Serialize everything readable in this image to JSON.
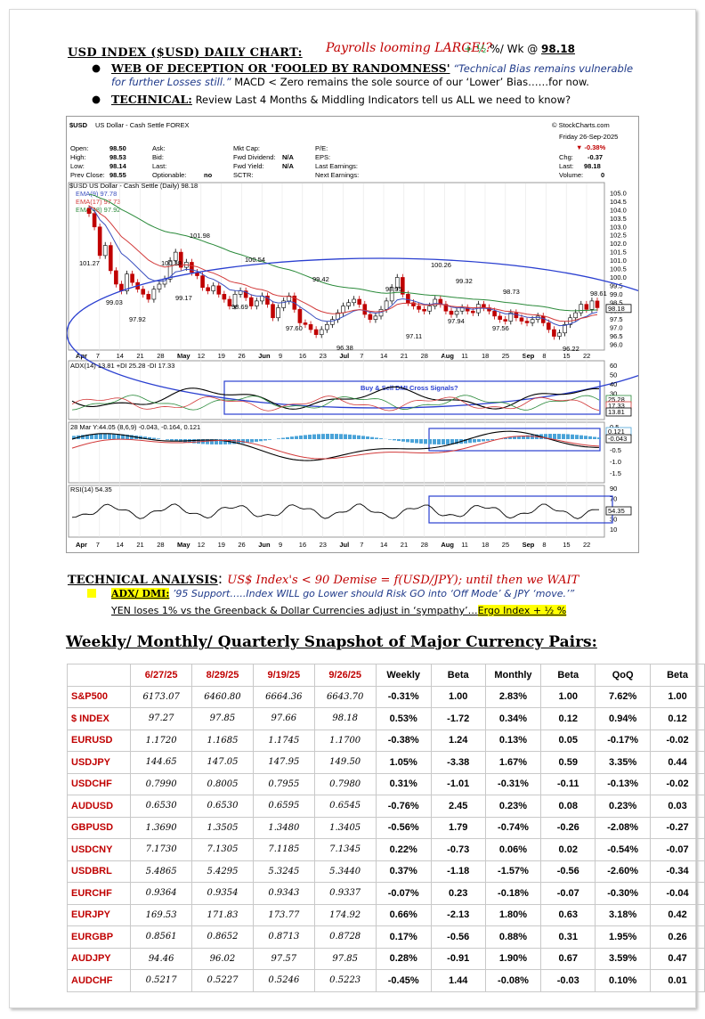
{
  "header": {
    "title": "USD INDEX ($USD) DAILY CHART:",
    "slogan": "Payrolls looming LARGE!?",
    "weekly_move": "+ ½",
    "weekly_suffix": " %/ Wk @ ",
    "level": "98.18",
    "bullet1_label": "WEB OF DECEPTION OR 'FOOLED BY RANDOMNESS'",
    "bullet1_quote": "“Technical Bias remains vulnerable",
    "bullet1_line2_quote": "for  further Losses still.”",
    "bullet1_line2_rest": "   MACD < Zero remains the sole source of our ‘Lower’ Bias……for now.",
    "bullet2_label": "TECHNICAL:",
    "bullet2_text": " Review Last 4 Months & Middling Indicators tell us ALL we need to know?"
  },
  "chart_header": {
    "symbol": "$USD",
    "name": "US Dollar - Cash Settle FOREX",
    "source": "© StockCharts.com",
    "date": "Friday 26-Sep-2025",
    "change_pct": "▼ -0.38%",
    "open_label": "Open:",
    "open": "98.50",
    "high_label": "High:",
    "high": "98.53",
    "low_label": "Low:",
    "low": "98.14",
    "prev_label": "Prev Close:",
    "prev": "98.55",
    "ask": "Ask:",
    "bid": "Bid:",
    "last": "Last:",
    "optionable": "Optionable:",
    "optionable_val": "no",
    "mktcap": "Mkt Cap:",
    "fwd_div": "Fwd Dividend:",
    "fwd_div_val": "N/A",
    "fwd_yld": "Fwd Yield:",
    "fwd_yld_val": "N/A",
    "sctr": "SCTR:",
    "pe": "P/E:",
    "eps": "EPS:",
    "last_earn": "Last Earnings:",
    "next_earn": "Next Earnings:",
    "chg_label": "Chg:",
    "chg": "-0.37",
    "last_label": "Last:",
    "last_val": "98.18",
    "vol_label": "Volume:",
    "vol": "0"
  },
  "chart_data": {
    "type": "line",
    "title": "$USD US Dollar - Cash Settle (Daily) 98.18",
    "legend": [
      {
        "name": "EMA(9) 97.78",
        "color": "#3a4fbf"
      },
      {
        "name": "EMA(17) 97.73",
        "color": "#d23a3a"
      },
      {
        "name": "EMA(48) 97.92",
        "color": "#2a8a3a"
      }
    ],
    "price_axis": [
      "105.0",
      "104.5",
      "104.0",
      "103.5",
      "103.0",
      "102.5",
      "102.0",
      "101.5",
      "101.0",
      "100.5",
      "100.0",
      "99.5",
      "99.0",
      "98.5",
      "98.0",
      "97.5",
      "97.0",
      "96.5",
      "96.0"
    ],
    "ylim": [
      96.0,
      105.0
    ],
    "x_labels": [
      "Apr",
      "7",
      "14",
      "21",
      "28",
      "May",
      "12",
      "19",
      "26",
      "Jun",
      "9",
      "16",
      "23",
      "Jul",
      "7",
      "14",
      "21",
      "28",
      "Aug",
      "11",
      "18",
      "25",
      "Sep",
      "8",
      "15",
      "22"
    ],
    "annotations": [
      "101.27",
      "99.03",
      "97.92",
      "100.38",
      "99.17",
      "101.98",
      "98.69",
      "100.54",
      "97.60",
      "99.42",
      "96.38",
      "98.95",
      "97.11",
      "100.26",
      "97.94",
      "99.32",
      "98.73",
      "97.56",
      "98.61",
      "96.22"
    ],
    "closes": [
      103.8,
      103.0,
      101.3,
      101.9,
      100.4,
      99.6,
      99.2,
      100.2,
      99.7,
      99.3,
      99.0,
      98.7,
      99.3,
      99.6,
      99.9,
      101.0,
      101.5,
      100.6,
      100.9,
      100.3,
      100.1,
      99.4,
      99.2,
      99.5,
      99.0,
      98.7,
      98.3,
      99.0,
      99.2,
      98.8,
      98.3,
      98.6,
      98.9,
      98.4,
      97.6,
      98.2,
      98.6,
      98.9,
      98.1,
      97.3,
      97.2,
      96.9,
      96.6,
      96.9,
      97.2,
      97.5,
      97.9,
      98.3,
      98.5,
      98.7,
      98.4,
      97.8,
      97.5,
      97.7,
      98.1,
      98.6,
      99.4,
      100.0,
      99.0,
      98.5,
      98.3,
      98.1,
      98.0,
      98.3,
      98.7,
      98.4,
      98.0,
      97.8,
      98.0,
      98.2,
      98.0,
      97.9,
      98.4,
      98.2,
      98.0,
      97.7,
      97.5,
      97.4,
      97.9,
      97.6,
      97.4,
      97.3,
      97.5,
      97.7,
      97.3,
      96.9,
      96.5,
      96.7,
      97.2,
      97.6,
      97.9,
      98.4,
      98.1,
      98.6,
      98.2
    ],
    "adx_label": "ADX(14) 13.81 +DI 25.28 -DI 17.33",
    "adx_axis": [
      "60",
      "50",
      "40",
      "30",
      "20",
      "10"
    ],
    "adx_tags": [
      "25.28",
      "17.33",
      "13.81"
    ],
    "dmi_note": "Buy & Sell DMI Cross Signals?",
    "macd_label": "28 Mar Y:44.05 (8,6,9) -0.043, -0.164, 0.121",
    "macd_axis": [
      "0.5",
      "0.0",
      "-0.5",
      "-1.0",
      "-1.5"
    ],
    "macd_tags": [
      "0.121",
      "-0.043"
    ],
    "rsi_label": "RSI(14) 54.35",
    "rsi_axis": [
      "90",
      "70",
      "50",
      "30",
      "10"
    ],
    "rsi_tag": "54.35",
    "bottom_labels": [
      "Apr",
      "7",
      "14",
      "21",
      "28",
      "May",
      "12",
      "19",
      "26",
      "Jun",
      "9",
      "16",
      "23",
      "Jul",
      "7",
      "14",
      "21",
      "28",
      "Aug",
      "11",
      "18",
      "25",
      "Sep",
      "8",
      "15",
      "22"
    ]
  },
  "technical": {
    "heading": "TECHNICAL ANALYSIS",
    "colon": ":",
    "red": "US$ Index's < 90 Demise = f(USD/JPY); until then we WAIT",
    "adx_label": "ADX/ DMI:",
    "adx_quote": " ’95 Support…..Index WILL go Lower should Risk GO into ‘Off Mode’ & JPY ‘move.’”",
    "line3": "YEN loses 1% vs the Greenback & Dollar Currencies adjust in ‘sympathy’…",
    "line3_hl": "Ergo Index + ½ %"
  },
  "snapshot": {
    "title": "Weekly/ Monthly/ Quarterly Snapshot of Major Currency Pairs:",
    "headers": [
      "",
      "6/27/25",
      "8/29/25",
      "9/19/25",
      "9/26/25",
      "Weekly",
      "Beta",
      "Monthly",
      "Beta",
      "QoQ",
      "Beta"
    ],
    "rows": [
      [
        "S&P500",
        "6173.07",
        "6460.80",
        "6664.36",
        "6643.70",
        "-0.31%",
        "1.00",
        "2.83%",
        "1.00",
        "7.62%",
        "1.00"
      ],
      [
        "$ INDEX",
        "97.27",
        "97.85",
        "97.66",
        "98.18",
        "0.53%",
        "-1.72",
        "0.34%",
        "0.12",
        "0.94%",
        "0.12"
      ],
      [
        "EURUSD",
        "1.1720",
        "1.1685",
        "1.1745",
        "1.1700",
        "-0.38%",
        "1.24",
        "0.13%",
        "0.05",
        "-0.17%",
        "-0.02"
      ],
      [
        "USDJPY",
        "144.65",
        "147.05",
        "147.95",
        "149.50",
        "1.05%",
        "-3.38",
        "1.67%",
        "0.59",
        "3.35%",
        "0.44"
      ],
      [
        "USDCHF",
        "0.7990",
        "0.8005",
        "0.7955",
        "0.7980",
        "0.31%",
        "-1.01",
        "-0.31%",
        "-0.11",
        "-0.13%",
        "-0.02"
      ],
      [
        "AUDUSD",
        "0.6530",
        "0.6530",
        "0.6595",
        "0.6545",
        "-0.76%",
        "2.45",
        "0.23%",
        "0.08",
        "0.23%",
        "0.03"
      ],
      [
        "GBPUSD",
        "1.3690",
        "1.3505",
        "1.3480",
        "1.3405",
        "-0.56%",
        "1.79",
        "-0.74%",
        "-0.26",
        "-2.08%",
        "-0.27"
      ],
      [
        "USDCNY",
        "7.1730",
        "7.1305",
        "7.1185",
        "7.1345",
        "0.22%",
        "-0.73",
        "0.06%",
        "0.02",
        "-0.54%",
        "-0.07"
      ],
      [
        "USDBRL",
        "5.4865",
        "5.4295",
        "5.3245",
        "5.3440",
        "0.37%",
        "-1.18",
        "-1.57%",
        "-0.56",
        "-2.60%",
        "-0.34"
      ],
      [
        "EURCHF",
        "0.9364",
        "0.9354",
        "0.9343",
        "0.9337",
        "-0.07%",
        "0.23",
        "-0.18%",
        "-0.07",
        "-0.30%",
        "-0.04"
      ],
      [
        "EURJPY",
        "169.53",
        "171.83",
        "173.77",
        "174.92",
        "0.66%",
        "-2.13",
        "1.80%",
        "0.63",
        "3.18%",
        "0.42"
      ],
      [
        "EURGBP",
        "0.8561",
        "0.8652",
        "0.8713",
        "0.8728",
        "0.17%",
        "-0.56",
        "0.88%",
        "0.31",
        "1.95%",
        "0.26"
      ],
      [
        "AUDJPY",
        "94.46",
        "96.02",
        "97.57",
        "97.85",
        "0.28%",
        "-0.91",
        "1.90%",
        "0.67",
        "3.59%",
        "0.47"
      ],
      [
        "AUDCHF",
        "0.5217",
        "0.5227",
        "0.5246",
        "0.5223",
        "-0.45%",
        "1.44",
        "-0.08%",
        "-0.03",
        "0.10%",
        "0.01"
      ]
    ]
  }
}
